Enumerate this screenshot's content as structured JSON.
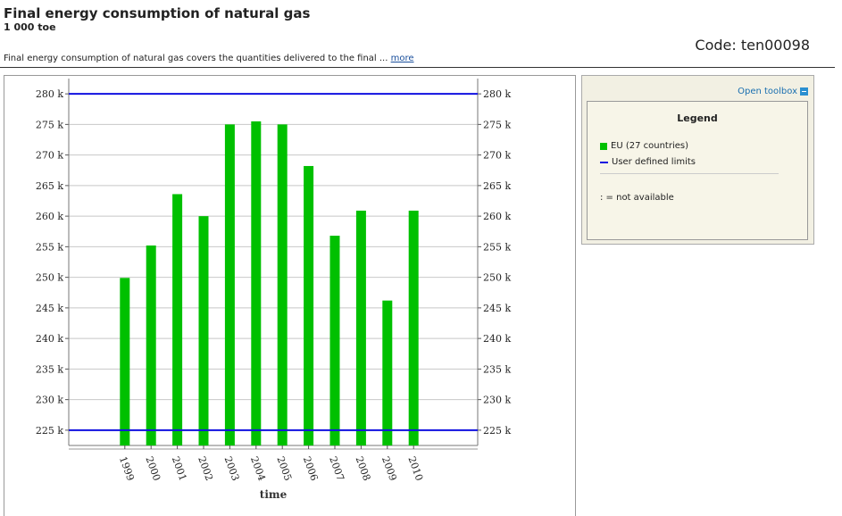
{
  "header": {
    "title": "Final energy consumption of natural gas",
    "unit": "1 000 toe",
    "code": "Code: ten00098",
    "description": "Final energy consumption of natural gas covers the quantities delivered to the final ...",
    "more_link": "more"
  },
  "toolbox": {
    "label": "Open toolbox"
  },
  "legend": {
    "title": "Legend",
    "items": [
      {
        "label": "EU (27 countries)",
        "color": "#00c000"
      },
      {
        "label": "User defined limits",
        "color": "#1010e0"
      }
    ],
    "note": ": = not available"
  },
  "chart_data": {
    "type": "bar",
    "categories": [
      "1999",
      "2000",
      "2001",
      "2002",
      "2003",
      "2004",
      "2005",
      "2006",
      "2007",
      "2008",
      "2009",
      "2010"
    ],
    "series": [
      {
        "name": "EU (27 countries)",
        "values": [
          249.9,
          255.2,
          263.6,
          260.0,
          275.0,
          275.5,
          275.0,
          268.2,
          256.8,
          260.9,
          246.2,
          260.9
        ],
        "color": "#00c000"
      }
    ],
    "limits": [
      225,
      280
    ],
    "limit_color": "#1010e0",
    "ylim": [
      222.5,
      282.5
    ],
    "yticks": [
      225,
      230,
      235,
      240,
      245,
      250,
      255,
      260,
      265,
      270,
      275,
      280
    ],
    "ytick_labels": [
      "225 k",
      "230 k",
      "235 k",
      "240 k",
      "245 k",
      "250 k",
      "255 k",
      "260 k",
      "265 k",
      "270 k",
      "275 k",
      "280 k"
    ],
    "xlabel": "time",
    "ylabel": "",
    "grid": true,
    "legend_position": "right"
  }
}
